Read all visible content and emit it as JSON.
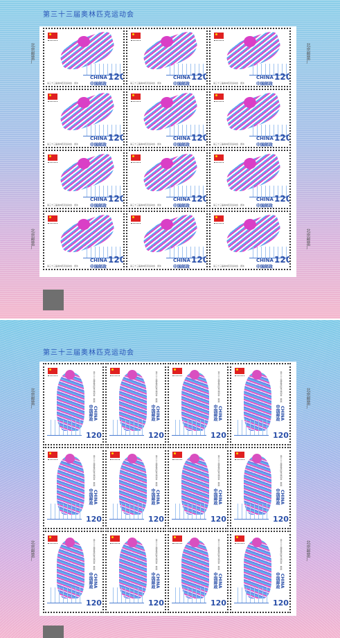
{
  "sheets": [
    {
      "title": "第三十三届奥林匹克运动会",
      "side_text": "北京邮票厂",
      "country": "CHINA",
      "post": "中国邮政",
      "denomination": "120",
      "caption": "第三十三届奥林匹克运动会 · 游泳"
    },
    {
      "title": "第三十三届奥林匹克运动会",
      "side_text": "北京邮票厂",
      "country": "CHINA",
      "post": "中国邮政",
      "denomination": "120",
      "caption": "第三十三届奥林匹克运动会 · 攀岩"
    }
  ]
}
